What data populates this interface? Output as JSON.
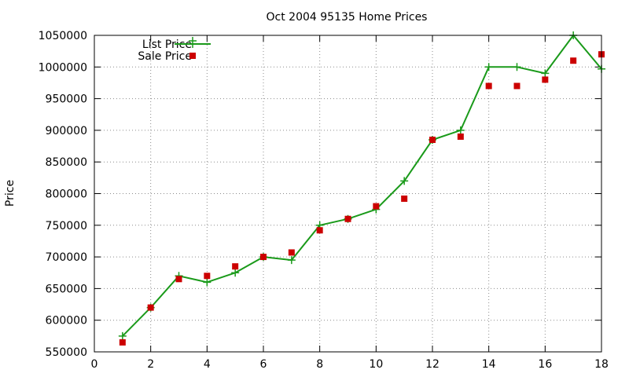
{
  "chart_data": {
    "type": "line",
    "title": "Oct 2004 95135 Home Prices",
    "xlabel": "",
    "ylabel": "Price",
    "xlim": [
      0,
      18
    ],
    "ylim": [
      550000,
      1050000
    ],
    "x_ticks": [
      0,
      2,
      4,
      6,
      8,
      10,
      12,
      14,
      16,
      18
    ],
    "y_ticks": [
      550000,
      600000,
      650000,
      700000,
      750000,
      800000,
      850000,
      900000,
      950000,
      1000000,
      1050000
    ],
    "grid": true,
    "legend_position": "top-left",
    "series": [
      {
        "name": "List Price",
        "style": "line+plus",
        "color": "#1a9a1a",
        "x": [
          1,
          2,
          3,
          4,
          5,
          6,
          7,
          8,
          9,
          10,
          11,
          12,
          13,
          14,
          15,
          16,
          17,
          18
        ],
        "y": [
          575000,
          620000,
          670000,
          660000,
          675000,
          700000,
          695000,
          750000,
          760000,
          775000,
          820000,
          885000,
          900000,
          1000000,
          1000000,
          990000,
          1050000,
          997000
        ]
      },
      {
        "name": "Sale Price",
        "style": "square-points",
        "color": "#cc0000",
        "x": [
          1,
          2,
          3,
          4,
          5,
          6,
          7,
          8,
          9,
          10,
          11,
          12,
          13,
          14,
          15,
          16,
          17,
          18
        ],
        "y": [
          565000,
          620000,
          665000,
          670000,
          685000,
          700000,
          707000,
          742000,
          760000,
          780000,
          792000,
          885000,
          890000,
          970000,
          970000,
          980000,
          1010000,
          1020000
        ]
      }
    ]
  }
}
